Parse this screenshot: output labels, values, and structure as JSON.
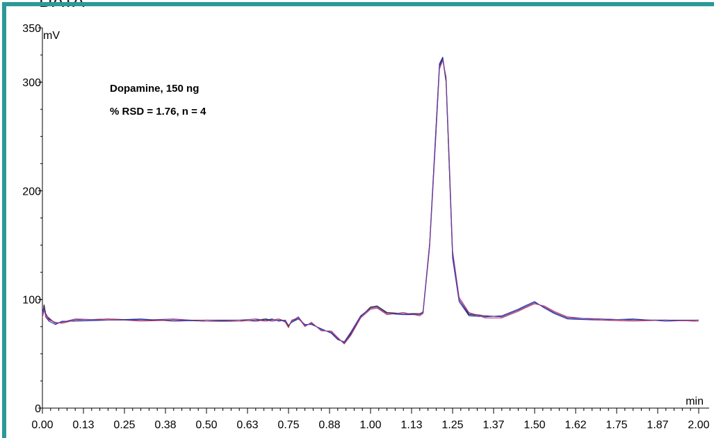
{
  "header": {
    "text": "DATA"
  },
  "colors": {
    "frame": "#2a9a96",
    "axis": "#000000"
  },
  "chart_data": {
    "type": "line",
    "title": "",
    "xlabel": "min",
    "ylabel": "mV",
    "xlim": [
      0,
      2.0
    ],
    "ylim": [
      0,
      350
    ],
    "x_ticks": [
      "0.00",
      "0.13",
      "0.25",
      "0.38",
      "0.50",
      "0.63",
      "0.75",
      "0.88",
      "1.00",
      "1.13",
      "1.25",
      "1.37",
      "1.50",
      "1.62",
      "1.75",
      "1.87",
      "2.00"
    ],
    "x_tick_values": [
      0,
      0.125,
      0.25,
      0.375,
      0.5,
      0.625,
      0.75,
      0.875,
      1.0,
      1.125,
      1.25,
      1.375,
      1.5,
      1.625,
      1.75,
      1.875,
      2.0
    ],
    "y_ticks": [
      0,
      100,
      200,
      300,
      350
    ],
    "annotations": [
      "Dopamine, 150 ng",
      "% RSD = 1.76, n = 4"
    ],
    "grid": false,
    "series": [
      {
        "color": "#1a1a1a",
        "x": [
          0,
          0.005,
          0.01,
          0.02,
          0.04,
          0.06,
          0.1,
          0.2,
          0.3,
          0.4,
          0.5,
          0.6,
          0.65,
          0.68,
          0.7,
          0.72,
          0.74,
          0.75,
          0.76,
          0.78,
          0.8,
          0.82,
          0.85,
          0.88,
          0.9,
          0.92,
          0.94,
          0.97,
          1.0,
          1.02,
          1.05,
          1.1,
          1.15,
          1.16,
          1.18,
          1.2,
          1.21,
          1.22,
          1.23,
          1.24,
          1.25,
          1.27,
          1.3,
          1.35,
          1.4,
          1.45,
          1.47,
          1.5,
          1.53,
          1.56,
          1.6,
          1.7,
          1.8,
          1.9,
          2.0
        ],
        "y": [
          85,
          95,
          87,
          82,
          78,
          79,
          81,
          82,
          81,
          81,
          80,
          80,
          81,
          82,
          81,
          82,
          80,
          75,
          80,
          83,
          76,
          78,
          72,
          70,
          64,
          60,
          68,
          84,
          93,
          94,
          88,
          87,
          87,
          88,
          150,
          260,
          315,
          322,
          300,
          220,
          140,
          100,
          86,
          85,
          84,
          90,
          93,
          97,
          93,
          88,
          83,
          82,
          81,
          81,
          80
        ]
      },
      {
        "color": "#1e2fa8",
        "x": [
          0,
          0.005,
          0.01,
          0.02,
          0.04,
          0.06,
          0.1,
          0.2,
          0.3,
          0.4,
          0.5,
          0.6,
          0.65,
          0.68,
          0.7,
          0.72,
          0.74,
          0.75,
          0.76,
          0.78,
          0.8,
          0.82,
          0.85,
          0.88,
          0.9,
          0.92,
          0.94,
          0.97,
          1.0,
          1.02,
          1.05,
          1.1,
          1.15,
          1.16,
          1.18,
          1.2,
          1.21,
          1.22,
          1.23,
          1.24,
          1.25,
          1.27,
          1.3,
          1.35,
          1.4,
          1.45,
          1.47,
          1.5,
          1.53,
          1.56,
          1.6,
          1.7,
          1.8,
          1.9,
          2.0
        ],
        "y": [
          88,
          93,
          84,
          80,
          77,
          80,
          80,
          81,
          82,
          80,
          81,
          81,
          80,
          81,
          82,
          80,
          81,
          76,
          79,
          82,
          77,
          77,
          73,
          69,
          63,
          61,
          70,
          85,
          92,
          93,
          87,
          86,
          86,
          89,
          152,
          262,
          317,
          323,
          302,
          222,
          138,
          98,
          85,
          84,
          85,
          91,
          94,
          98,
          92,
          87,
          82,
          81,
          82,
          80,
          81
        ]
      },
      {
        "color": "#c04070",
        "x": [
          0,
          0.005,
          0.01,
          0.02,
          0.04,
          0.06,
          0.1,
          0.2,
          0.3,
          0.4,
          0.5,
          0.6,
          0.65,
          0.68,
          0.7,
          0.72,
          0.74,
          0.75,
          0.76,
          0.78,
          0.8,
          0.82,
          0.85,
          0.88,
          0.9,
          0.92,
          0.94,
          0.97,
          1.0,
          1.02,
          1.05,
          1.1,
          1.15,
          1.16,
          1.18,
          1.2,
          1.21,
          1.22,
          1.23,
          1.24,
          1.25,
          1.27,
          1.3,
          1.35,
          1.4,
          1.45,
          1.47,
          1.5,
          1.53,
          1.56,
          1.6,
          1.7,
          1.8,
          1.9,
          2.0
        ],
        "y": [
          83,
          90,
          85,
          81,
          79,
          78,
          81,
          82,
          80,
          81,
          81,
          80,
          81,
          80,
          81,
          82,
          79,
          74,
          81,
          83,
          75,
          79,
          71,
          71,
          65,
          59,
          67,
          83,
          91,
          92,
          86,
          88,
          85,
          87,
          148,
          255,
          312,
          320,
          305,
          228,
          145,
          102,
          88,
          83,
          83,
          89,
          92,
          96,
          94,
          89,
          84,
          81,
          80,
          81,
          80
        ]
      },
      {
        "color": "#6a3fa0",
        "x": [
          0,
          0.005,
          0.01,
          0.02,
          0.04,
          0.06,
          0.1,
          0.2,
          0.3,
          0.4,
          0.5,
          0.6,
          0.65,
          0.68,
          0.7,
          0.72,
          0.74,
          0.75,
          0.76,
          0.78,
          0.8,
          0.82,
          0.85,
          0.88,
          0.9,
          0.92,
          0.94,
          0.97,
          1.0,
          1.02,
          1.05,
          1.1,
          1.15,
          1.16,
          1.18,
          1.2,
          1.21,
          1.22,
          1.23,
          1.24,
          1.25,
          1.27,
          1.3,
          1.35,
          1.4,
          1.45,
          1.47,
          1.5,
          1.53,
          1.56,
          1.6,
          1.7,
          1.8,
          1.9,
          2.0
        ],
        "y": [
          86,
          92,
          86,
          83,
          78,
          79,
          82,
          81,
          81,
          82,
          80,
          81,
          82,
          81,
          80,
          81,
          80,
          76,
          80,
          84,
          76,
          78,
          72,
          70,
          64,
          60,
          69,
          84,
          92,
          93,
          87,
          87,
          86,
          88,
          151,
          258,
          314,
          321,
          303,
          224,
          142,
          100,
          87,
          85,
          84,
          90,
          93,
          97,
          93,
          88,
          83,
          82,
          81,
          81,
          81
        ]
      }
    ]
  }
}
